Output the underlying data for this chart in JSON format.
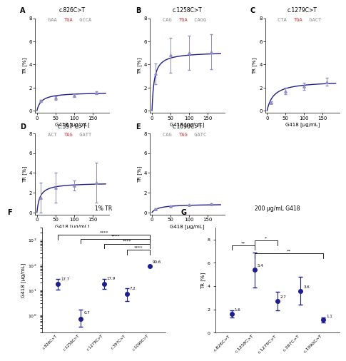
{
  "panels": {
    "A": {
      "title": "c.826C>T",
      "sub_gray1": "GAA ",
      "sub_red": "TGA",
      "sub_gray2": " GCCA",
      "Vmax": 1.6,
      "EC50": 12,
      "data_x": [
        10,
        50,
        100,
        160
      ],
      "data_y": [
        0.85,
        1.1,
        1.3,
        1.55
      ],
      "data_yerr": [
        0.1,
        0.15,
        0.15,
        0.15
      ]
    },
    "B": {
      "title": "c.1258C>T",
      "sub_gray1": "CAG ",
      "sub_red": "TGA",
      "sub_gray2": " CAGG",
      "Vmax": 5.1,
      "EC50": 6,
      "data_x": [
        10,
        50,
        100,
        160
      ],
      "data_y": [
        3.2,
        4.8,
        5.0,
        5.1
      ],
      "data_yerr": [
        0.9,
        1.5,
        1.5,
        1.5
      ]
    },
    "C": {
      "title": "c.1279C>T",
      "sub_gray1": "CTA ",
      "sub_red": "TGA",
      "sub_gray2": " GACT",
      "Vmax": 2.6,
      "EC50": 18,
      "data_x": [
        10,
        50,
        100,
        160
      ],
      "data_y": [
        0.7,
        1.7,
        2.1,
        2.5
      ],
      "data_yerr": [
        0.1,
        0.3,
        0.3,
        0.35
      ]
    },
    "D": {
      "title": "c.397 C>T",
      "sub_gray1": "ACT ",
      "sub_red": "TAG",
      "sub_gray2": " GATT",
      "Vmax": 3.0,
      "EC50": 8,
      "data_x": [
        10,
        50,
        100,
        160
      ],
      "data_y": [
        1.5,
        2.5,
        2.7,
        3.0
      ],
      "data_yerr": [
        1.5,
        1.5,
        0.5,
        2.0
      ]
    },
    "E": {
      "title": "c.1090C>T",
      "sub_gray1": "CAG ",
      "sub_red": "TAG",
      "sub_gray2": " GATC",
      "Vmax": 0.85,
      "EC50": 18,
      "data_x": [
        10,
        50,
        100,
        160
      ],
      "data_y": [
        0.35,
        0.6,
        0.75,
        0.85
      ],
      "data_yerr": [
        0.04,
        0.04,
        0.04,
        0.04
      ]
    }
  },
  "panel_F": {
    "means": [
      17.7,
      0.7,
      17.9,
      7.2,
      90.6
    ],
    "yerr_lo": [
      7.0,
      0.35,
      7.0,
      3.5,
      0.0
    ],
    "yerr_hi": [
      10.0,
      1.0,
      10.0,
      5.0,
      0.0
    ],
    "labels": [
      "17.7",
      "0.7",
      "17.9",
      "7.2",
      "90.6"
    ],
    "title": "1% TR",
    "ylabel": "G418 [μg/mL]",
    "xticklabels": [
      "c.826C>T",
      "c.1258C>T",
      "c.1279C>T",
      "c.397C>T",
      "c.1090C>T"
    ],
    "sig_brackets": [
      [
        0,
        4,
        "****",
        1600
      ],
      [
        1,
        4,
        "****",
        1100
      ],
      [
        2,
        4,
        "****",
        700
      ],
      [
        3,
        4,
        "****",
        400
      ]
    ]
  },
  "panel_G": {
    "means": [
      1.6,
      5.4,
      2.7,
      3.6,
      1.1
    ],
    "yerr_lo": [
      0.3,
      1.5,
      0.8,
      1.2,
      0.2
    ],
    "yerr_hi": [
      0.3,
      1.5,
      0.8,
      1.2,
      0.2
    ],
    "labels": [
      "1.6",
      "5.4",
      "2.7",
      "3.6",
      "1.1"
    ],
    "title": "200 μg/mL G418",
    "ylabel": "TR [%]",
    "xticklabels": [
      "c.826C>T",
      "c.1258C>T",
      "c.1279C>T",
      "c.397C>T",
      "c.1090C>T"
    ],
    "sig_brackets": [
      [
        0,
        1,
        "**",
        7.5
      ],
      [
        1,
        2,
        "*",
        7.9
      ],
      [
        1,
        4,
        "**",
        6.8
      ]
    ]
  },
  "curve_color": "#1e1e8c",
  "data_color": "#9090c0",
  "dot_color": "#1e1e8c",
  "red_color": "#cc3333",
  "gray_color": "#888888"
}
